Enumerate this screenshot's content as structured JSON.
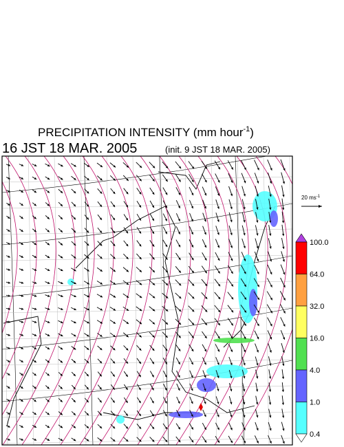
{
  "title": {
    "main": "PRECIPITATION INTENSITY (mm hour",
    "exponent": "-1",
    "close": ")"
  },
  "valid_time": "16 JST 18 MAR. 2005",
  "init_time": "(init. 9 JST 18 MAR. 2005)",
  "vector_scale": {
    "label": "20 ms",
    "exponent": "-1"
  },
  "colorbar": {
    "labels": [
      "100.0",
      "64.0",
      "32.0",
      "16.0",
      "4.0",
      "1.0",
      "0.4"
    ],
    "colors": [
      "#ff0000",
      "#ffa040",
      "#ffff60",
      "#50e050",
      "#6464ff",
      "#55ffff"
    ],
    "over_color": "#b040e0",
    "under_color": "#ffffff"
  }
}
